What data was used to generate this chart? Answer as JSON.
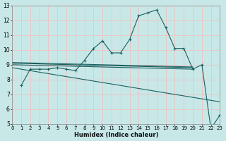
{
  "xlabel": "Humidex (Indice chaleur)",
  "background_color": "#c8e8e8",
  "grid_color": "#e8c8c8",
  "line_color": "#1a6060",
  "xlim": [
    0,
    23
  ],
  "ylim": [
    5,
    13
  ],
  "xticks": [
    0,
    1,
    2,
    3,
    4,
    5,
    6,
    7,
    8,
    9,
    10,
    11,
    12,
    13,
    14,
    15,
    16,
    17,
    18,
    19,
    20,
    21,
    22,
    23
  ],
  "yticks": [
    5,
    6,
    7,
    8,
    9,
    10,
    11,
    12,
    13
  ],
  "series_main": {
    "x": [
      1,
      2,
      3,
      4,
      5,
      6,
      7,
      8,
      9,
      10,
      11,
      12,
      13,
      14,
      15,
      16,
      17,
      18,
      19,
      20,
      21,
      22,
      23
    ],
    "y": [
      7.6,
      8.7,
      8.7,
      8.7,
      8.8,
      8.7,
      8.6,
      9.3,
      10.1,
      10.6,
      9.8,
      9.8,
      10.7,
      12.3,
      12.5,
      12.7,
      11.5,
      10.1,
      10.1,
      8.7,
      9.0,
      4.7,
      5.6
    ]
  },
  "series_lines": [
    {
      "x": [
        0,
        23
      ],
      "y": [
        8.8,
        6.5
      ]
    },
    {
      "x": [
        0,
        20
      ],
      "y": [
        9.0,
        8.7
      ]
    },
    {
      "x": [
        0,
        20
      ],
      "y": [
        9.1,
        8.8
      ]
    },
    {
      "x": [
        0,
        20
      ],
      "y": [
        9.15,
        8.85
      ]
    }
  ]
}
